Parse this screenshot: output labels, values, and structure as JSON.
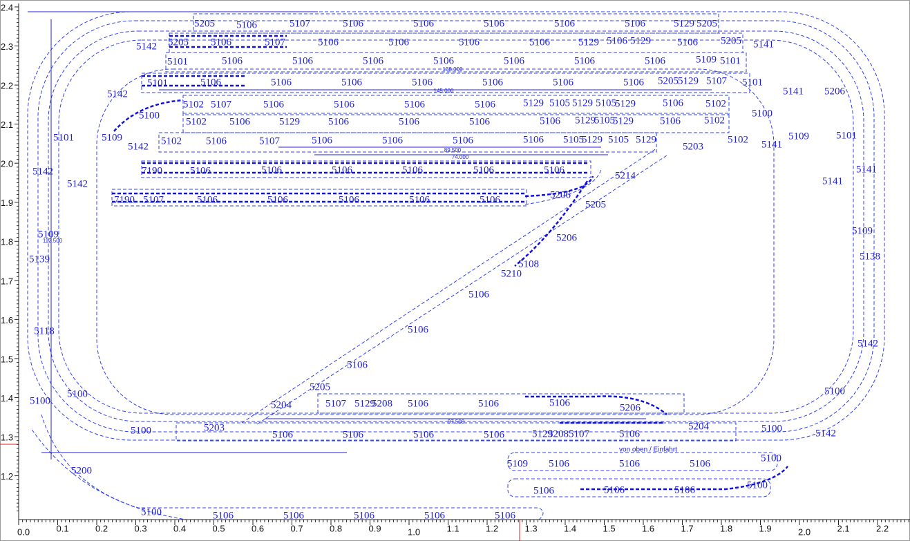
{
  "axes": {
    "x_ticks": [
      "0.0",
      "0.1",
      "0.2",
      "0.3",
      "0.4",
      "0.5",
      "0.6",
      "0.7",
      "0.8",
      "0.9",
      "1.0",
      "1.1",
      "1.2",
      "1.3",
      "1.4",
      "1.5",
      "1.6",
      "1.7",
      "1.8",
      "1.9",
      "2.0",
      "2.1",
      "2.2"
    ],
    "y_ticks": [
      "2.4",
      "2.3",
      "2.2",
      "2.1",
      "2.0",
      "1.9",
      "1.8",
      "1.7",
      "1.6",
      "1.5",
      "1.4",
      "1.3",
      "1.2"
    ]
  },
  "labels": [
    "5205",
    "5106",
    "5107",
    "5106",
    "5106",
    "5106",
    "5106",
    "5106",
    "5129",
    "5205",
    "5142",
    "5205",
    "5106",
    "5107",
    "5106",
    "5106",
    "5106",
    "5106",
    "5129",
    "5106",
    "5129",
    "5106",
    "5205",
    "5141",
    "5101",
    "5106",
    "5106",
    "5106",
    "5106",
    "5106",
    "5106",
    "5106",
    "5109",
    "5101",
    "5101",
    "5106",
    "5106",
    "5106",
    "5106",
    "5106",
    "5106",
    "5106",
    "5205",
    "5129",
    "5107",
    "5101",
    "5141",
    "5206",
    "5142",
    "5102",
    "5107",
    "5106",
    "5106",
    "5106",
    "5106",
    "5129",
    "5105",
    "5129",
    "5105",
    "5129",
    "5106",
    "5102",
    "5100",
    "5100",
    "5102",
    "5106",
    "5129",
    "5106",
    "5106",
    "5106",
    "5106",
    "5129",
    "5105",
    "5129",
    "5106",
    "5102",
    "5101",
    "5109",
    "5142",
    "5102",
    "5106",
    "5107",
    "5106",
    "5106",
    "5106",
    "5106",
    "5105",
    "5129",
    "5105",
    "5129",
    "5203",
    "5102",
    "5141",
    "5109",
    "5101",
    "7190",
    "5106",
    "5106",
    "5106",
    "5106",
    "5106",
    "5106",
    "5214",
    "5142",
    "5141",
    "5142",
    "5141",
    "7190",
    "5107",
    "5106",
    "5106",
    "5106",
    "5106",
    "5106",
    "5206",
    "5205",
    "5109",
    "5206",
    "5109",
    "5139",
    "5138",
    "5108",
    "5210",
    "5106",
    "5106",
    "5118",
    "5142",
    "5106",
    "5205",
    "5100",
    "5100",
    "5100",
    "5204",
    "5107",
    "5129",
    "5208",
    "5106",
    "5106",
    "5106",
    "5206",
    "5203",
    "5100",
    "5106",
    "5106",
    "5106",
    "5106",
    "5129",
    "5208",
    "5107",
    "5106",
    "5204",
    "5100",
    "5142",
    "5109",
    "5106",
    "5106",
    "5106",
    "5100",
    "5200",
    "5106",
    "5106",
    "5106",
    "5100",
    "5100",
    "5106",
    "5106",
    "5106",
    "5106",
    "5106"
  ],
  "dimensions": [
    "138.000",
    "145.000",
    "89.500",
    "74.000",
    "112.500",
    "97.500"
  ],
  "annotation": "von oben / Einfahrt"
}
